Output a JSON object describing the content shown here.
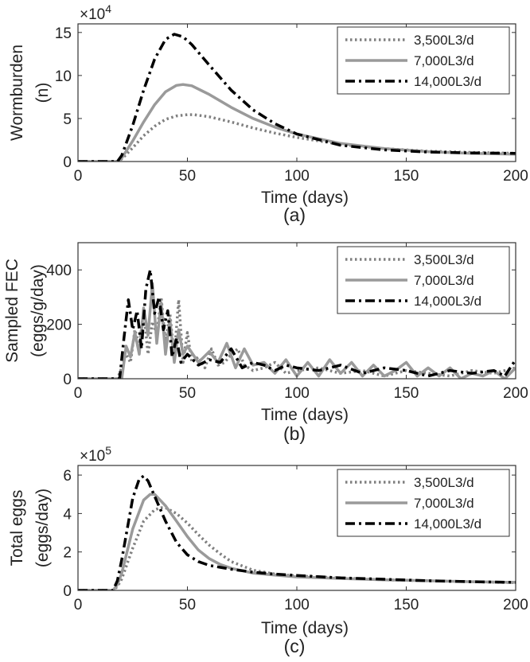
{
  "legend_entries": [
    "3,500L3/d",
    "7,000L3/d",
    "14,000L3/d"
  ],
  "series_styles": [
    {
      "name": "3,500L3/d",
      "color": "#7f7f7f",
      "dash": "dotted"
    },
    {
      "name": "7,000L3/d",
      "color": "#9a9a9a",
      "dash": "solid"
    },
    {
      "name": "14,000L3/d",
      "color": "#000000",
      "dash": "dash-dot"
    }
  ],
  "chart_data": [
    {
      "type": "line",
      "caption": "(a)",
      "xlabel": "Time (days)",
      "ylabel": [
        "Wormburden",
        "(n)"
      ],
      "exponent": "×10",
      "exponent_power": "4",
      "xlim": [
        0,
        200
      ],
      "ylim": [
        0,
        16
      ],
      "xticks": [
        0,
        50,
        100,
        150,
        200
      ],
      "yticks": [
        0,
        5,
        10,
        15
      ],
      "legend": "top-right",
      "series": [
        {
          "name": "3,500L3/d",
          "x": [
            0,
            18,
            20,
            25,
            30,
            35,
            40,
            45,
            50,
            53,
            60,
            70,
            80,
            90,
            100,
            120,
            140,
            160,
            180,
            200
          ],
          "values": [
            0,
            0,
            0.3,
            1.6,
            3.0,
            4.1,
            4.9,
            5.3,
            5.45,
            5.45,
            5.2,
            4.6,
            3.9,
            3.3,
            2.8,
            2.0,
            1.5,
            1.2,
            1.05,
            0.95
          ]
        },
        {
          "name": "7,000L3/d",
          "x": [
            0,
            18,
            20,
            25,
            30,
            35,
            40,
            45,
            48,
            52,
            60,
            70,
            80,
            90,
            100,
            120,
            140,
            160,
            180,
            200
          ],
          "values": [
            0,
            0,
            0.4,
            2.4,
            4.6,
            6.6,
            8.1,
            8.85,
            8.95,
            8.8,
            7.8,
            6.3,
            5.0,
            4.0,
            3.2,
            2.1,
            1.5,
            1.15,
            0.95,
            0.85
          ]
        },
        {
          "name": "14,000L3/d",
          "x": [
            0,
            18,
            20,
            25,
            30,
            35,
            40,
            44,
            48,
            52,
            60,
            70,
            80,
            90,
            100,
            120,
            140,
            160,
            180,
            200
          ],
          "values": [
            0,
            0,
            0.7,
            4.2,
            8.3,
            11.9,
            14.2,
            14.8,
            14.5,
            13.6,
            11.2,
            8.3,
            6.0,
            4.4,
            3.2,
            1.9,
            1.35,
            1.1,
            1.0,
            0.95
          ]
        }
      ]
    },
    {
      "type": "line",
      "caption": "(b)",
      "xlabel": "Time (days)",
      "ylabel": [
        "Sampled FEC",
        "(eggs/g/day)"
      ],
      "exponent": "",
      "exponent_power": "",
      "xlim": [
        0,
        200
      ],
      "ylim": [
        0,
        500
      ],
      "xticks": [
        0,
        50,
        100,
        150,
        200
      ],
      "yticks": [
        0,
        200,
        400
      ],
      "legend": "top-right",
      "series": [
        {
          "name": "3,500L3/d",
          "x": [
            0,
            18,
            20,
            22,
            24,
            26,
            28,
            30,
            32,
            34,
            36,
            38,
            40,
            42,
            44,
            46,
            48,
            50,
            52,
            55,
            58,
            61,
            64,
            67,
            70,
            73,
            76,
            80,
            85,
            90,
            95,
            100,
            110,
            120,
            130,
            140,
            150,
            160,
            170,
            180,
            190,
            200
          ],
          "values": [
            0,
            0,
            40,
            90,
            60,
            180,
            120,
            250,
            90,
            210,
            160,
            300,
            130,
            240,
            80,
            290,
            60,
            170,
            60,
            80,
            40,
            110,
            50,
            60,
            90,
            110,
            50,
            30,
            40,
            60,
            20,
            30,
            40,
            20,
            30,
            10,
            30,
            20,
            10,
            30,
            20,
            40
          ]
        },
        {
          "name": "7,000L3/d",
          "x": [
            0,
            20,
            22,
            24,
            26,
            28,
            30,
            32,
            34,
            36,
            38,
            40,
            42,
            44,
            46,
            48,
            50,
            55,
            60,
            64,
            68,
            72,
            76,
            80,
            85,
            90,
            95,
            100,
            105,
            110,
            115,
            120,
            125,
            130,
            135,
            140,
            145,
            150,
            155,
            160,
            165,
            170,
            175,
            180,
            185,
            190,
            195,
            200
          ],
          "values": [
            0,
            0,
            120,
            80,
            170,
            90,
            260,
            160,
            350,
            130,
            280,
            90,
            220,
            60,
            180,
            90,
            120,
            60,
            100,
            60,
            130,
            40,
            110,
            50,
            60,
            20,
            70,
            10,
            60,
            10,
            70,
            20,
            60,
            10,
            50,
            10,
            30,
            60,
            10,
            40,
            10,
            40,
            0,
            20,
            10,
            30,
            0,
            40
          ]
        },
        {
          "name": "14,000L3/d",
          "x": [
            0,
            19,
            21,
            23,
            25,
            27,
            29,
            31,
            33,
            35,
            37,
            39,
            41,
            43,
            45,
            47,
            50,
            55,
            60,
            65,
            70,
            75,
            80,
            85,
            90,
            95,
            100,
            110,
            120,
            130,
            140,
            150,
            160,
            170,
            180,
            190,
            195,
            200
          ],
          "values": [
            0,
            0,
            150,
            290,
            180,
            250,
            110,
            330,
            400,
            240,
            300,
            180,
            250,
            80,
            150,
            60,
            90,
            50,
            70,
            60,
            110,
            40,
            60,
            50,
            30,
            50,
            40,
            30,
            50,
            20,
            40,
            30,
            10,
            30,
            20,
            30,
            10,
            70
          ]
        }
      ]
    },
    {
      "type": "line",
      "caption": "(c)",
      "xlabel": "Time (days)",
      "ylabel": [
        "Total eggs",
        "(eggs/day)"
      ],
      "exponent": "×10",
      "exponent_power": "5",
      "xlim": [
        0,
        200
      ],
      "ylim": [
        0,
        6.5
      ],
      "xticks": [
        0,
        50,
        100,
        150,
        200
      ],
      "yticks": [
        0,
        2,
        4,
        6
      ],
      "legend": "top-right",
      "series": [
        {
          "name": "3,500L3/d",
          "x": [
            0,
            16,
            18,
            20,
            25,
            30,
            35,
            38,
            40,
            45,
            50,
            55,
            60,
            65,
            70,
            80,
            90,
            100,
            120,
            140,
            160,
            180,
            200
          ],
          "values": [
            0,
            0,
            0.2,
            0.6,
            2.2,
            3.6,
            4.2,
            4.3,
            4.3,
            4.0,
            3.5,
            2.9,
            2.35,
            1.9,
            1.5,
            1.05,
            0.85,
            0.75,
            0.65,
            0.55,
            0.5,
            0.45,
            0.4
          ]
        },
        {
          "name": "7,000L3/d",
          "x": [
            0,
            16,
            18,
            20,
            25,
            30,
            33,
            35,
            40,
            45,
            50,
            55,
            60,
            65,
            70,
            80,
            90,
            100,
            120,
            140,
            160,
            180,
            200
          ],
          "values": [
            0,
            0,
            0.3,
            0.9,
            3.2,
            4.7,
            5.0,
            5.0,
            4.4,
            3.6,
            2.8,
            2.1,
            1.65,
            1.35,
            1.15,
            0.9,
            0.8,
            0.7,
            0.62,
            0.55,
            0.5,
            0.45,
            0.42
          ]
        },
        {
          "name": "14,000L3/d",
          "x": [
            0,
            16,
            18,
            20,
            25,
            28,
            30,
            32,
            35,
            40,
            45,
            50,
            55,
            60,
            65,
            70,
            80,
            90,
            100,
            120,
            140,
            160,
            180,
            200
          ],
          "values": [
            0,
            0,
            0.5,
            1.6,
            4.8,
            5.8,
            5.95,
            5.7,
            4.9,
            3.6,
            2.5,
            1.85,
            1.5,
            1.3,
            1.2,
            1.1,
            0.95,
            0.85,
            0.78,
            0.65,
            0.58,
            0.5,
            0.45,
            0.42
          ]
        }
      ]
    }
  ]
}
